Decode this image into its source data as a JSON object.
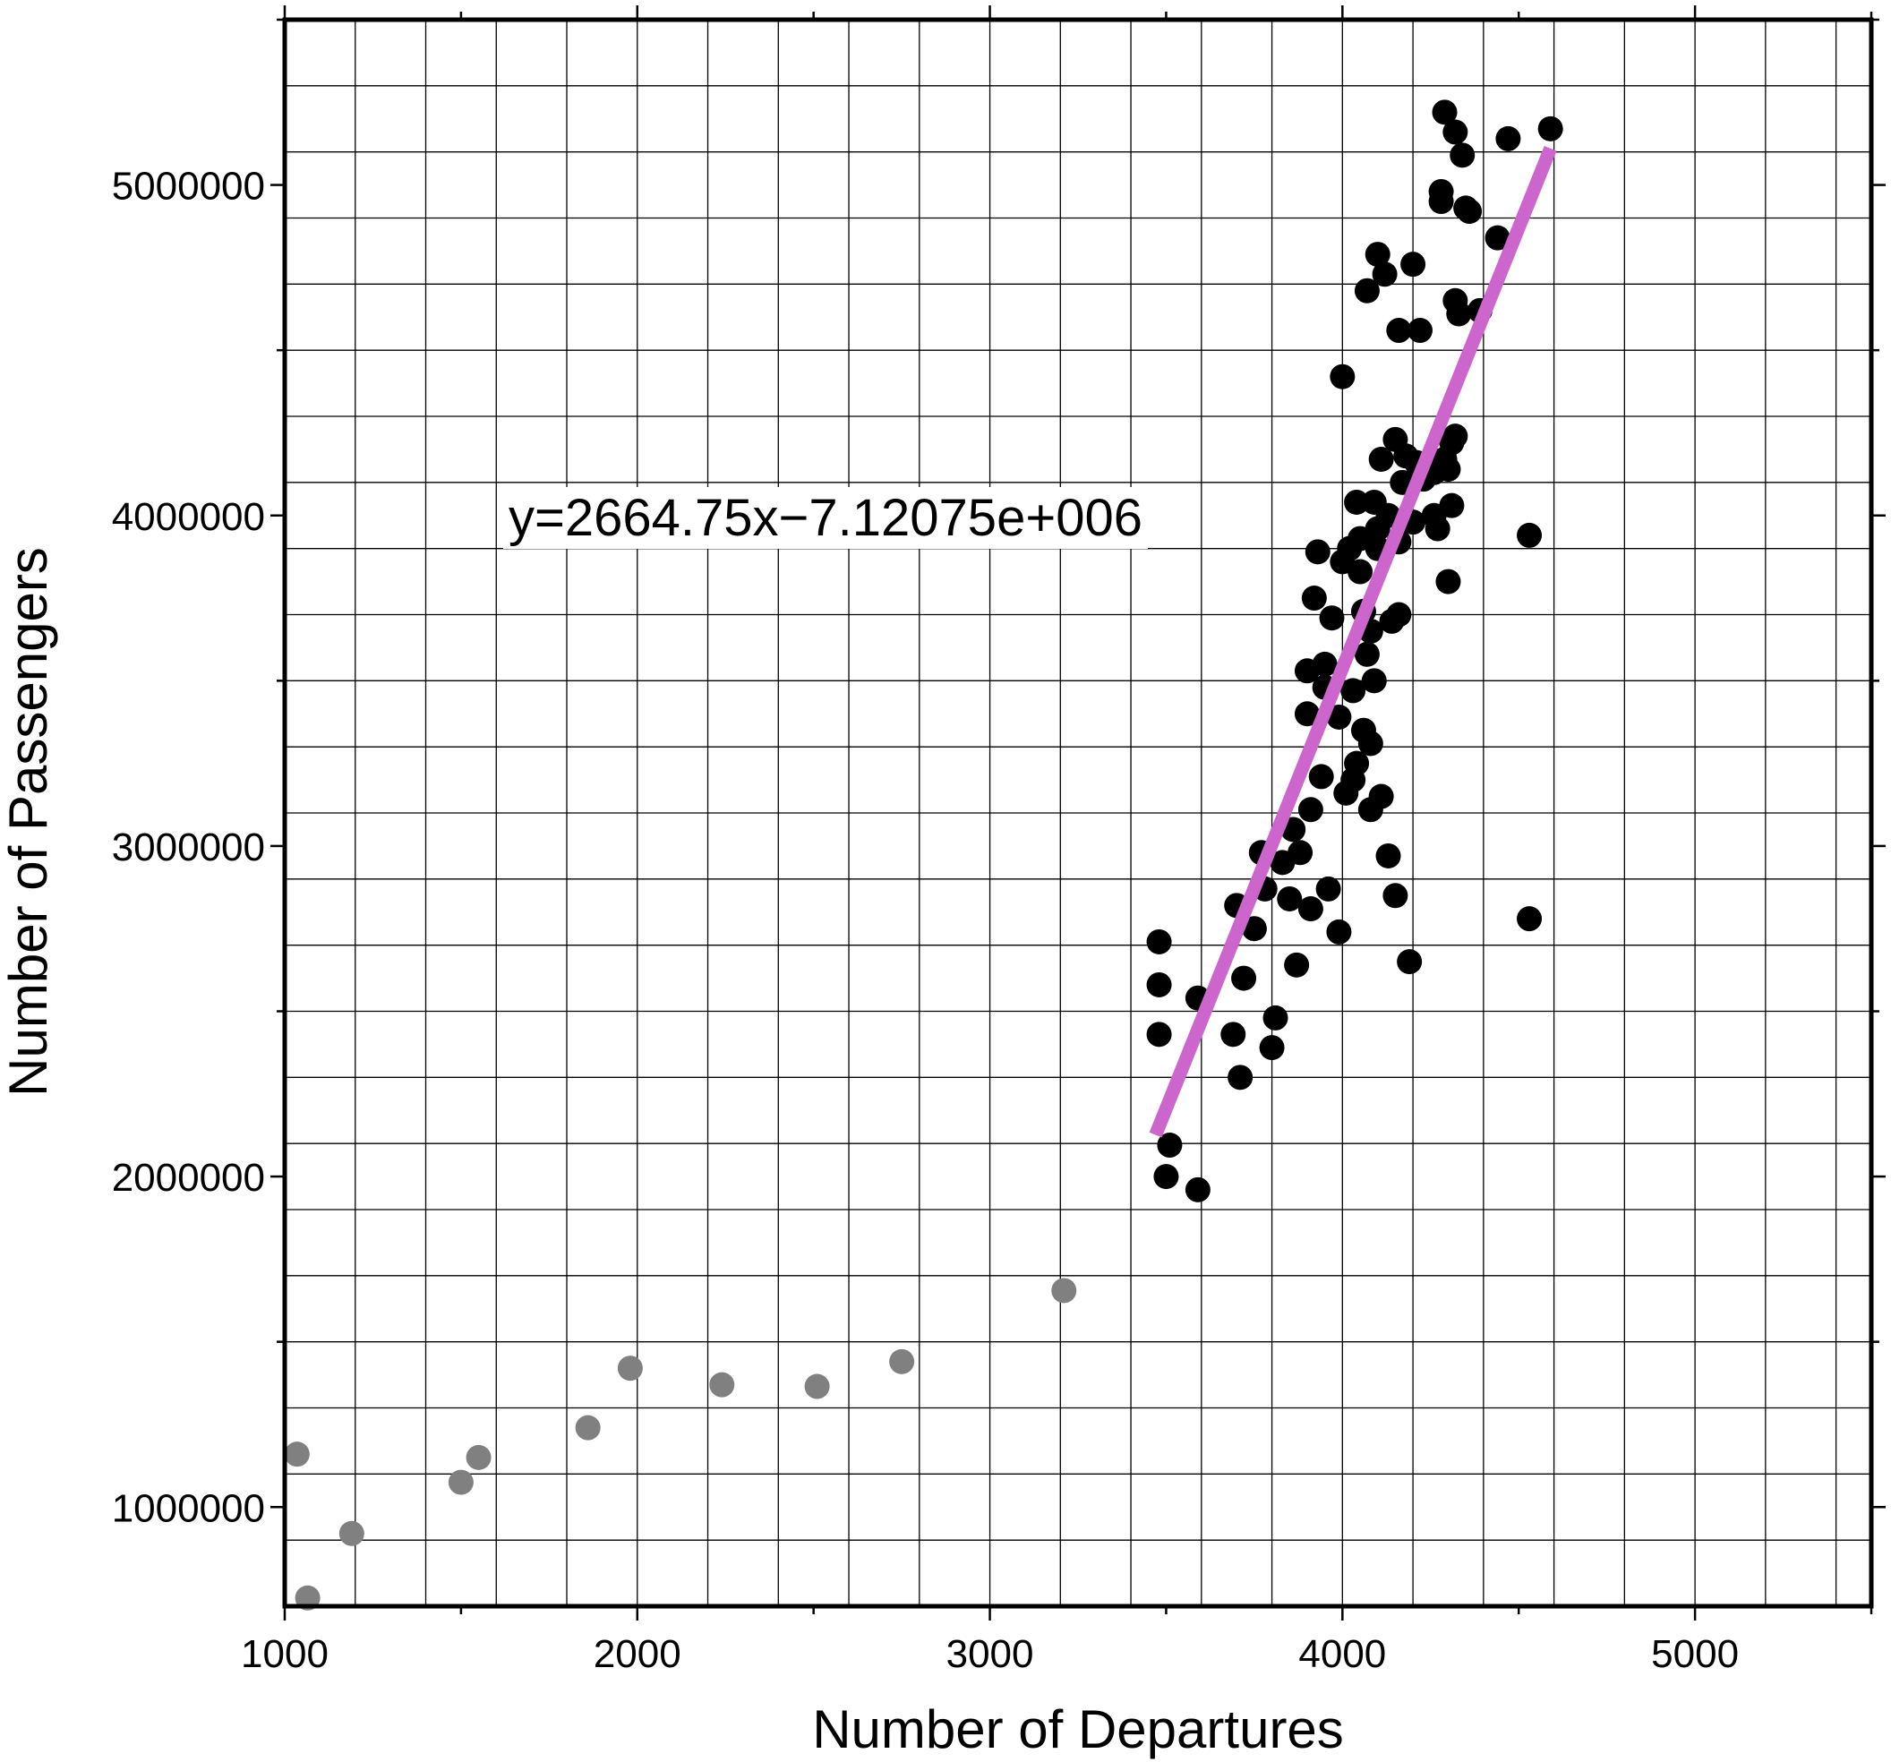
{
  "chart_data": {
    "type": "scatter",
    "title": "",
    "xlabel": "Number of Departures",
    "ylabel": "Number of Passengers",
    "xlim": [
      1000,
      5500
    ],
    "ylim": [
      700000,
      5500000
    ],
    "x_ticks": [
      1000,
      2000,
      3000,
      4000,
      5000
    ],
    "x_tick_labels": [
      "1000",
      "2000",
      "3000",
      "4000",
      "5000"
    ],
    "y_ticks": [
      1000000,
      2000000,
      3000000,
      4000000,
      5000000
    ],
    "y_tick_labels": [
      "1000000",
      "2000000",
      "3000000",
      "4000000",
      "5000000"
    ],
    "grid": true,
    "grid_x_step": 200,
    "grid_y_step": 200000,
    "colors": {
      "fitted_points": "#000000",
      "other_points": "#808080",
      "fit_line": "#cc66cc",
      "grid": "#000000"
    },
    "fit": {
      "slope": 2664.75,
      "intercept": -7120750,
      "x_range": [
        3470,
        4590
      ],
      "label": "y=2664.75x−7.12075e+006"
    },
    "series": [
      {
        "color": "#808080",
        "points": [
          [
            1035,
            1160000
          ],
          [
            1065,
            725000
          ],
          [
            1190,
            920000
          ],
          [
            1500,
            1075000
          ],
          [
            1550,
            1150000
          ],
          [
            1860,
            1240000
          ],
          [
            1980,
            1420000
          ],
          [
            2240,
            1370000
          ],
          [
            2510,
            1365000
          ],
          [
            2750,
            1440000
          ],
          [
            3210,
            1655000
          ]
        ]
      },
      {
        "color": "#000000",
        "points": [
          [
            3480,
            2710000
          ],
          [
            3480,
            2580000
          ],
          [
            3480,
            2430000
          ],
          [
            3500,
            2000000
          ],
          [
            3510,
            2095000
          ],
          [
            3590,
            1960000
          ],
          [
            3590,
            2540000
          ],
          [
            3690,
            2430000
          ],
          [
            3700,
            2820000
          ],
          [
            3710,
            2300000
          ],
          [
            3720,
            2600000
          ],
          [
            3750,
            2750000
          ],
          [
            3770,
            2980000
          ],
          [
            3780,
            2870000
          ],
          [
            3800,
            2390000
          ],
          [
            3810,
            2480000
          ],
          [
            3830,
            2950000
          ],
          [
            3850,
            2840000
          ],
          [
            3860,
            3050000
          ],
          [
            3870,
            2640000
          ],
          [
            3880,
            2980000
          ],
          [
            3900,
            3400000
          ],
          [
            3900,
            3530000
          ],
          [
            3910,
            3110000
          ],
          [
            3910,
            2810000
          ],
          [
            3920,
            3750000
          ],
          [
            3930,
            3890000
          ],
          [
            3940,
            3210000
          ],
          [
            3950,
            3550000
          ],
          [
            3950,
            3480000
          ],
          [
            3960,
            2870000
          ],
          [
            3970,
            3690000
          ],
          [
            3990,
            3390000
          ],
          [
            3990,
            2740000
          ],
          [
            4000,
            3860000
          ],
          [
            4000,
            4420000
          ],
          [
            4010,
            3160000
          ],
          [
            4020,
            3900000
          ],
          [
            4030,
            3470000
          ],
          [
            4030,
            3200000
          ],
          [
            4040,
            4040000
          ],
          [
            4040,
            3250000
          ],
          [
            4050,
            3830000
          ],
          [
            4050,
            3930000
          ],
          [
            4060,
            3350000
          ],
          [
            4060,
            3710000
          ],
          [
            4070,
            4680000
          ],
          [
            4070,
            3580000
          ],
          [
            4080,
            3110000
          ],
          [
            4080,
            3310000
          ],
          [
            4080,
            3650000
          ],
          [
            4090,
            3500000
          ],
          [
            4090,
            4040000
          ],
          [
            4100,
            4790000
          ],
          [
            4100,
            3900000
          ],
          [
            4100,
            3960000
          ],
          [
            4110,
            4170000
          ],
          [
            4110,
            3150000
          ],
          [
            4120,
            4730000
          ],
          [
            4130,
            2970000
          ],
          [
            4130,
            4000000
          ],
          [
            4140,
            3680000
          ],
          [
            4150,
            2850000
          ],
          [
            4150,
            4230000
          ],
          [
            4160,
            4560000
          ],
          [
            4160,
            3700000
          ],
          [
            4160,
            3920000
          ],
          [
            4170,
            4100000
          ],
          [
            4180,
            4180000
          ],
          [
            4190,
            2650000
          ],
          [
            4200,
            4760000
          ],
          [
            4200,
            3980000
          ],
          [
            4210,
            4160000
          ],
          [
            4220,
            4560000
          ],
          [
            4230,
            4110000
          ],
          [
            4240,
            4140000
          ],
          [
            4260,
            4000000
          ],
          [
            4260,
            4130000
          ],
          [
            4270,
            3960000
          ],
          [
            4280,
            4980000
          ],
          [
            4280,
            4950000
          ],
          [
            4290,
            4170000
          ],
          [
            4290,
            5220000
          ],
          [
            4300,
            4140000
          ],
          [
            4300,
            3800000
          ],
          [
            4310,
            4030000
          ],
          [
            4310,
            4220000
          ],
          [
            4320,
            4240000
          ],
          [
            4320,
            4650000
          ],
          [
            4320,
            5160000
          ],
          [
            4330,
            4610000
          ],
          [
            4340,
            5090000
          ],
          [
            4350,
            4930000
          ],
          [
            4360,
            4920000
          ],
          [
            4390,
            4620000
          ],
          [
            4440,
            4840000
          ],
          [
            4470,
            5140000
          ],
          [
            4530,
            3940000
          ],
          [
            4530,
            2780000
          ],
          [
            4590,
            5170000
          ]
        ]
      }
    ]
  }
}
